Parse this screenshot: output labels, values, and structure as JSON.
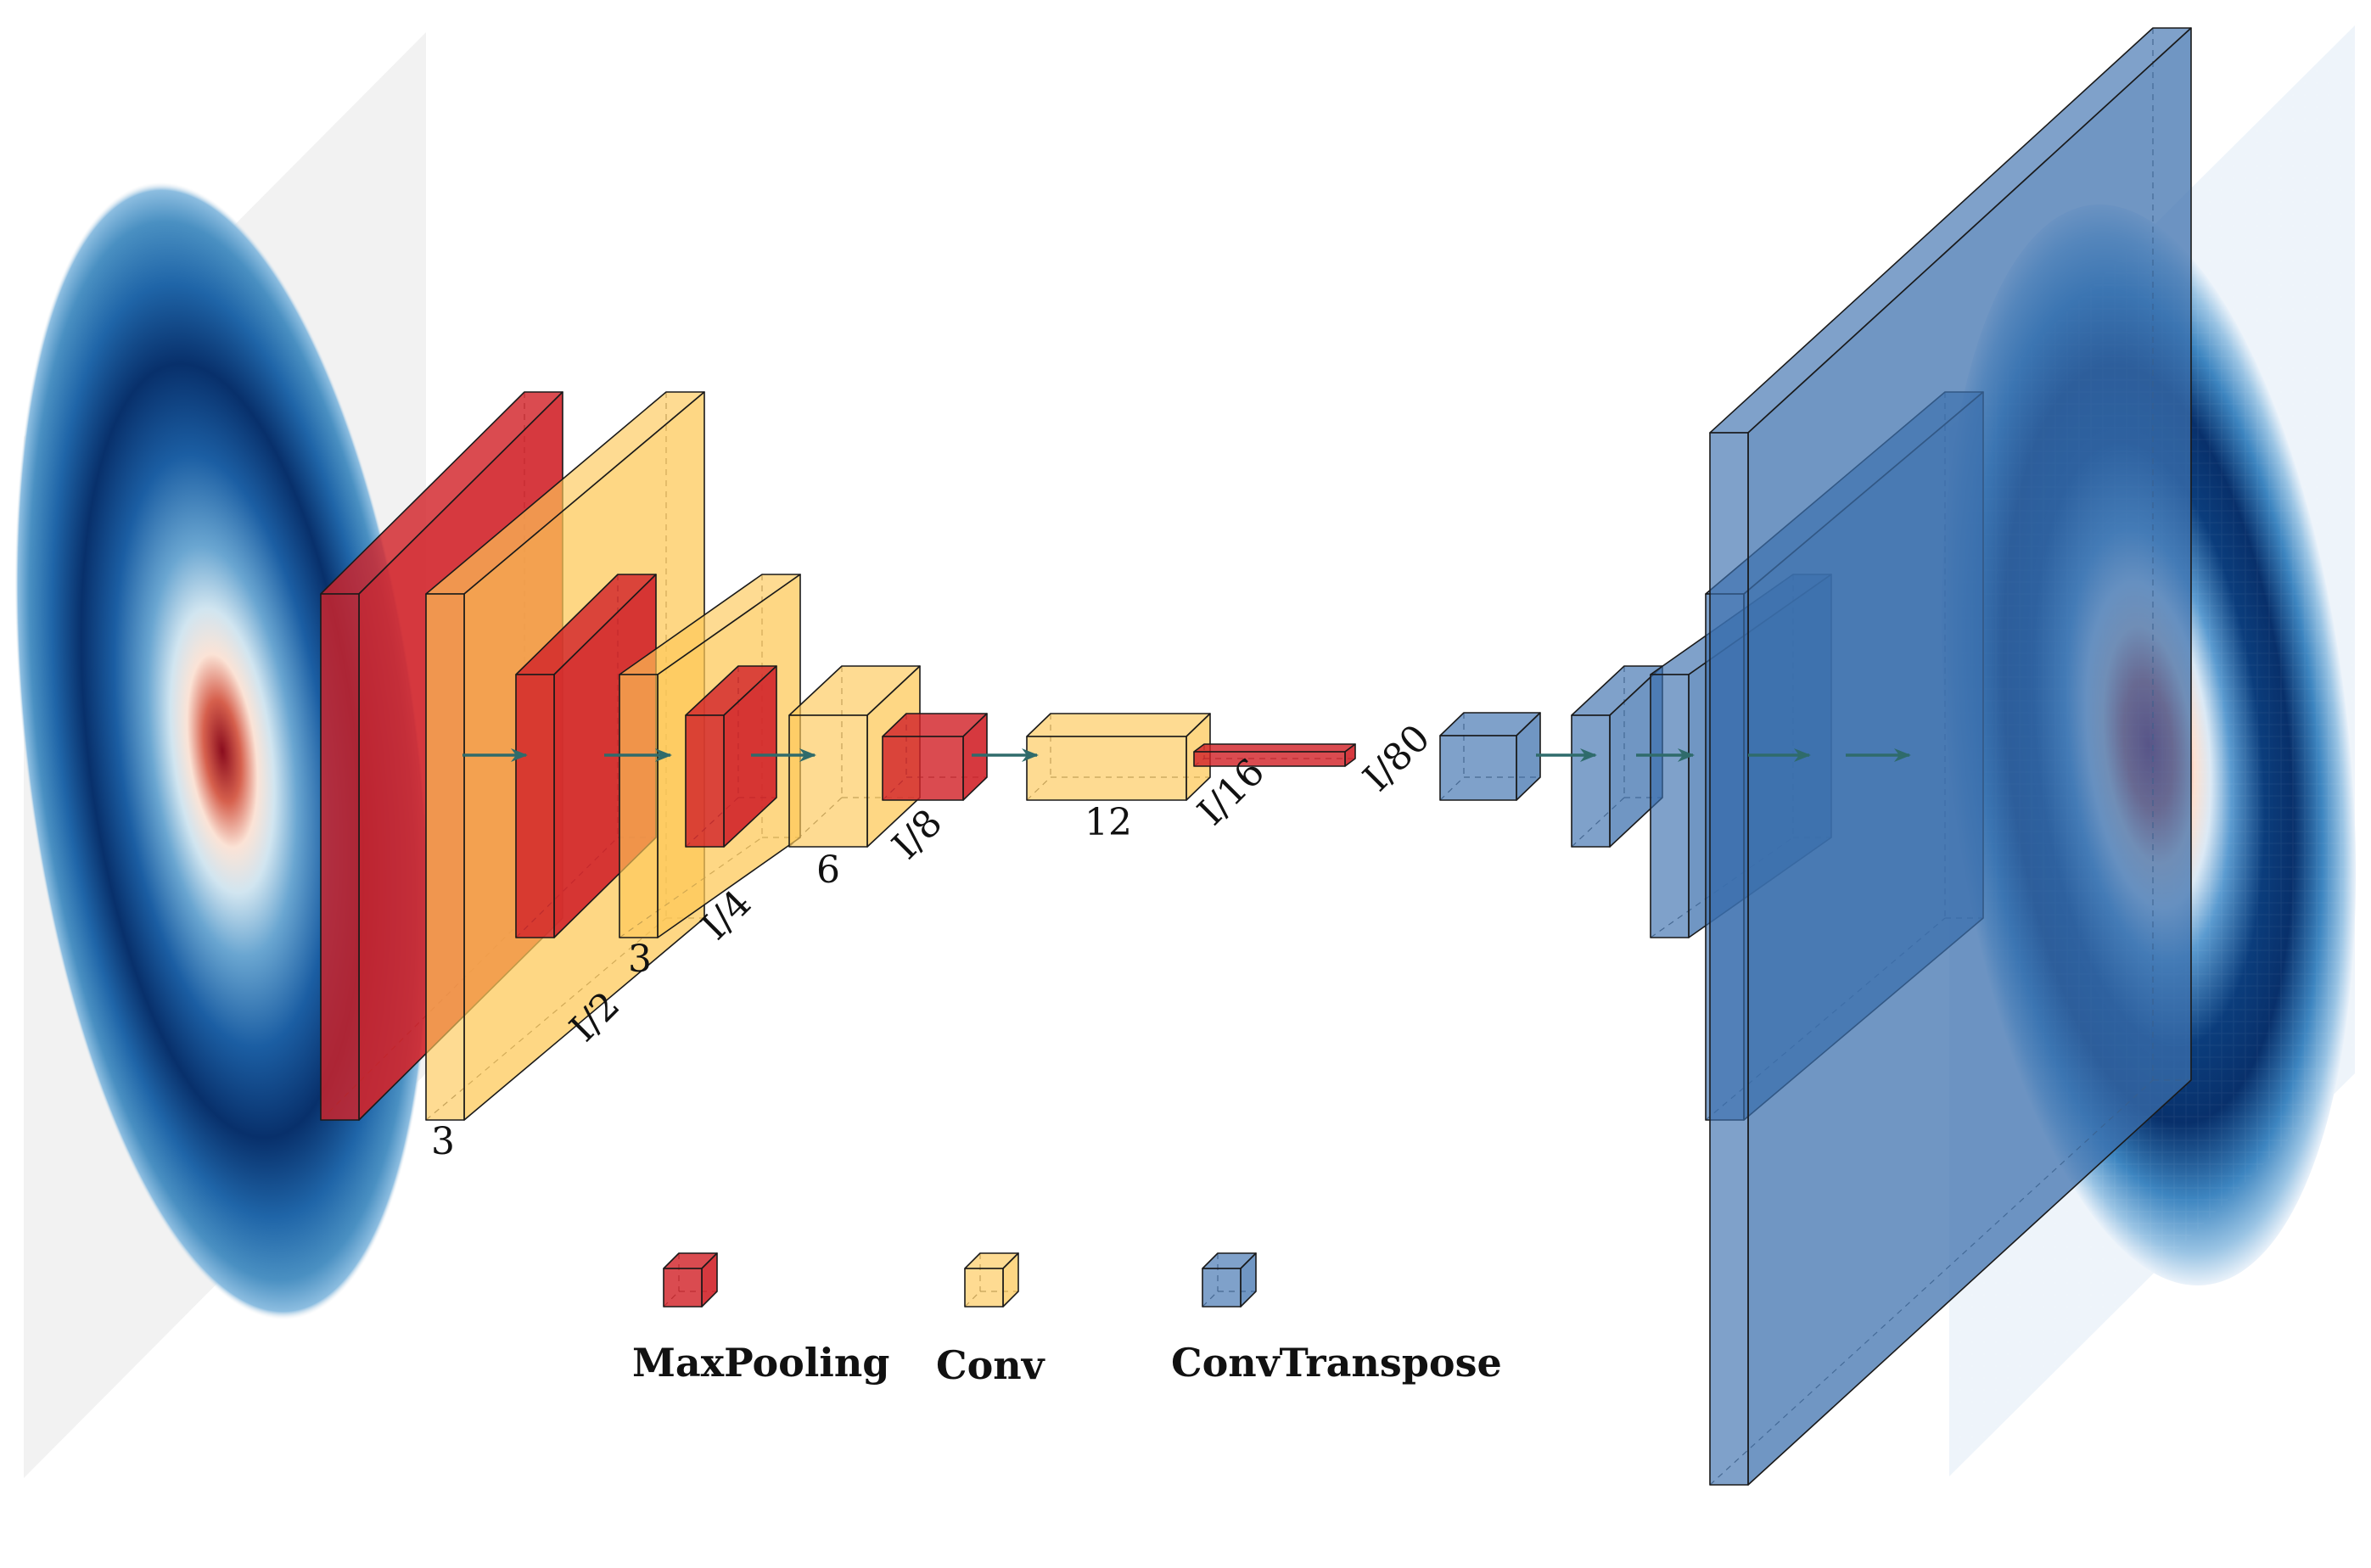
{
  "diagram": {
    "title": "",
    "colors": {
      "maxpool": "#d2232a",
      "conv": "#fdc857",
      "convT": "#3b6fad",
      "arrow": "#2f6b6b",
      "heat_dark": "#08306b",
      "heat_mid": "#4b8fc3",
      "heat_light": "#deebf7",
      "heat_hot": "#b2182b",
      "plane": "#f2f2f2"
    },
    "input_image": {
      "name": "input-heatmap",
      "style": "smooth-ring"
    },
    "output_image": {
      "name": "output-heatmap",
      "style": "pixelated-ring"
    },
    "dim_labels": [
      "3",
      "I/2",
      "3",
      "I/4",
      "6",
      "I/8",
      "12",
      "I/16",
      "I/80"
    ],
    "legend": [
      {
        "key": "maxpool",
        "label": "MaxPooling"
      },
      {
        "key": "conv",
        "label": "Conv"
      },
      {
        "key": "convT",
        "label": "ConvTranspose"
      }
    ]
  }
}
